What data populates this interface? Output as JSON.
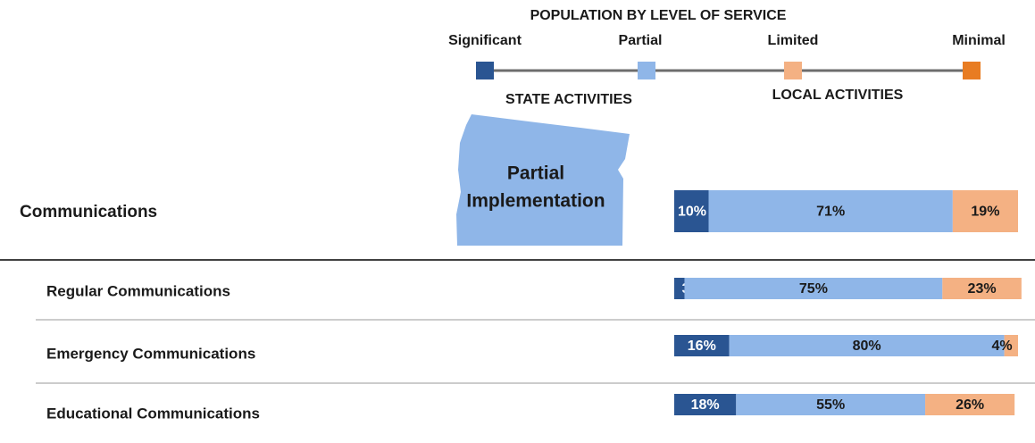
{
  "chart_data": {
    "type": "bar",
    "title": "POPULATION BY LEVEL OF SERVICE",
    "section_labels": [
      "STATE ACTIVITIES",
      "LOCAL ACTIVITIES"
    ],
    "annotation": [
      "Partial",
      "Implementation"
    ],
    "categories": [
      "Communications",
      "Regular Communications",
      "Emergency Communications",
      "Educational Communications"
    ],
    "xlim": [
      0,
      100
    ],
    "series": [
      {
        "name": "Significant",
        "color": "#2a5592",
        "values": [
          10,
          3,
          16,
          18
        ],
        "value_labels": [
          "10%",
          "3%",
          "16%",
          "18%"
        ]
      },
      {
        "name": "Partial",
        "color": "#8fb6e8",
        "values": [
          71,
          75,
          80,
          55
        ],
        "value_labels": [
          "71%",
          "75%",
          "80%",
          "55%"
        ]
      },
      {
        "name": "Limited",
        "color": "#f4b183",
        "values": [
          19,
          23,
          4,
          26
        ],
        "value_labels": [
          "19%",
          "23%",
          "4%",
          "26%"
        ]
      },
      {
        "name": "Minimal",
        "color": "#e87c22",
        "values": [
          0,
          0,
          0,
          0
        ]
      }
    ]
  }
}
